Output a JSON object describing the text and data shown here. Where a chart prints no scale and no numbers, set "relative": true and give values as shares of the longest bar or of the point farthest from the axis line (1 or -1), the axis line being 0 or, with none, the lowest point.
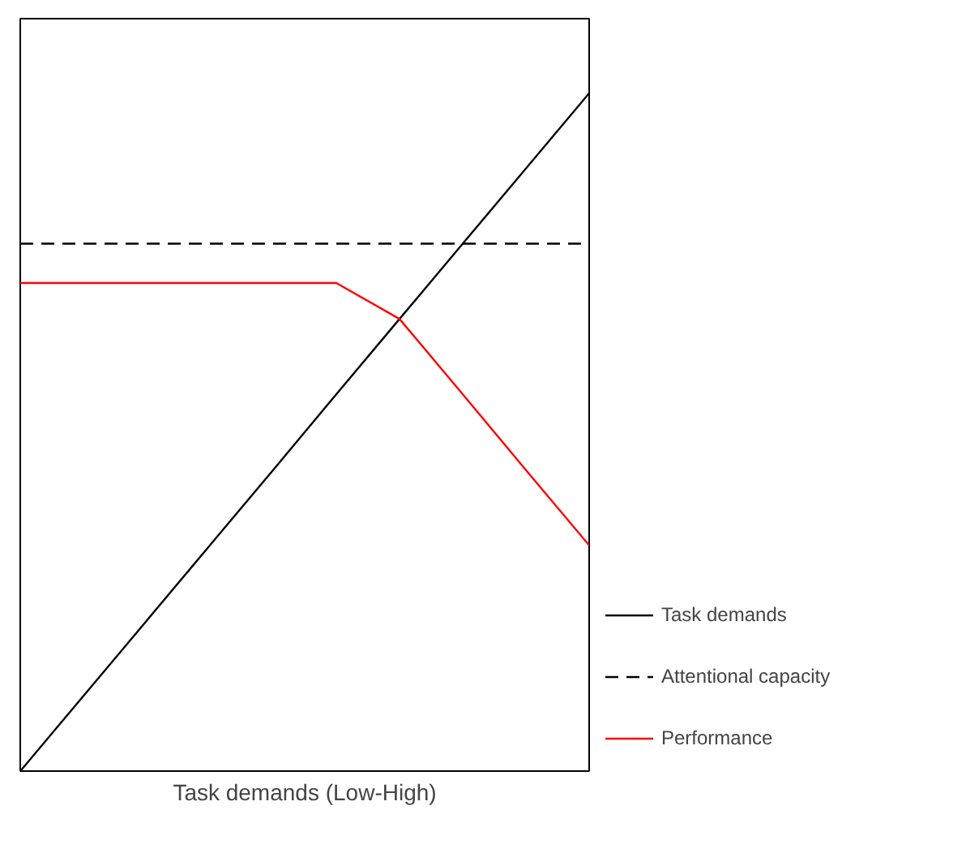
{
  "chart_data": {
    "type": "line",
    "relative": true,
    "xlabel": "Task demands (Low-High)",
    "grid": false,
    "legend": "right",
    "marker": "none",
    "categories": [
      null,
      null,
      null,
      null,
      null,
      null,
      null,
      null,
      null,
      null
    ],
    "series": [
      {
        "name": "Task demands",
        "color": "#000000",
        "values": [
          0,
          0.111,
          0.222,
          0.333,
          0.444,
          0.556,
          0.667,
          0.778,
          0.889,
          1
        ],
        "line_style": "solid"
      },
      {
        "name": "Attentional capacity",
        "color": "#000000",
        "values": [
          0.778,
          0.778,
          0.778,
          0.778,
          0.778,
          0.778,
          0.778,
          0.778,
          0.778,
          0.778
        ],
        "line_style": "dashed"
      },
      {
        "name": "Performance",
        "color": "#ff0000",
        "values": [
          0.72,
          0.72,
          0.72,
          0.72,
          0.72,
          0.72,
          0.667,
          0.556,
          0.444,
          0.333
        ],
        "line_style": "solid"
      }
    ]
  }
}
